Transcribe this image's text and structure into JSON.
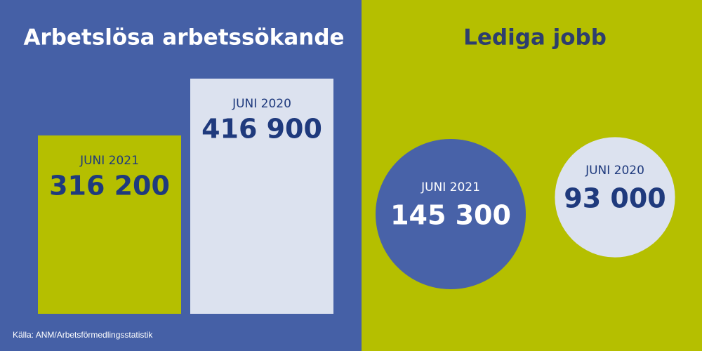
{
  "chart_data": [
    {
      "type": "bar",
      "title": "Arbetslösa arbetssökande",
      "categories": [
        "JUNI 2021",
        "JUNI 2020"
      ],
      "values": [
        316200,
        416900
      ],
      "value_labels": [
        "316 200",
        "416 900"
      ],
      "colors": [
        "#b5bf00",
        "#dce2ef"
      ],
      "text_colors": [
        "#1f3a7d",
        "#1f3a7d"
      ]
    },
    {
      "type": "bubble",
      "title": "Lediga jobb",
      "categories": [
        "JUNI 2021",
        "JUNI 2020"
      ],
      "values": [
        145300,
        93000
      ],
      "value_labels": [
        "145 300",
        "93 000"
      ],
      "colors": [
        "#4862a8",
        "#dce2ef"
      ],
      "text_colors": [
        "#ffffff",
        "#1f3a7d"
      ]
    }
  ],
  "source": "Källa: ANM/Arbetsförmedlingsstatistik"
}
